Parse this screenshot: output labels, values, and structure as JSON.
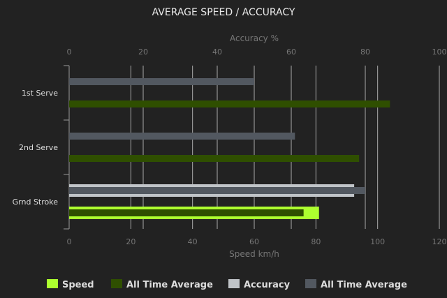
{
  "chart_data": {
    "type": "bar",
    "orientation": "horizontal",
    "title": "AVERAGE SPEED / ACCURACY",
    "categories": [
      "1st Serve",
      "2nd Serve",
      "Grnd Stroke"
    ],
    "top_axis": {
      "label": "Accuracy %",
      "range": [
        0,
        100
      ],
      "ticks": [
        "0",
        "20",
        "40",
        "60",
        "80",
        "100"
      ]
    },
    "bottom_axis": {
      "label": "Speed km/h",
      "range": [
        0,
        120
      ],
      "ticks": [
        "0",
        "20",
        "40",
        "60",
        "80",
        "100",
        "120"
      ]
    },
    "grid": true,
    "legend_position": "bottom",
    "series": [
      {
        "name": "Speed",
        "axis": "speed",
        "color": "#adff2f",
        "values": [
          null,
          null,
          81
        ]
      },
      {
        "name": "All Time Average",
        "axis": "speed",
        "color": "#2f4f00",
        "values": [
          104,
          94,
          76
        ]
      },
      {
        "name": "Accuracy",
        "axis": "accuracy",
        "color": "#c0c4c8",
        "values": [
          null,
          null,
          77
        ]
      },
      {
        "name": "All Time Average",
        "axis": "accuracy",
        "color": "#525860",
        "values": [
          50,
          61,
          80
        ]
      }
    ]
  }
}
